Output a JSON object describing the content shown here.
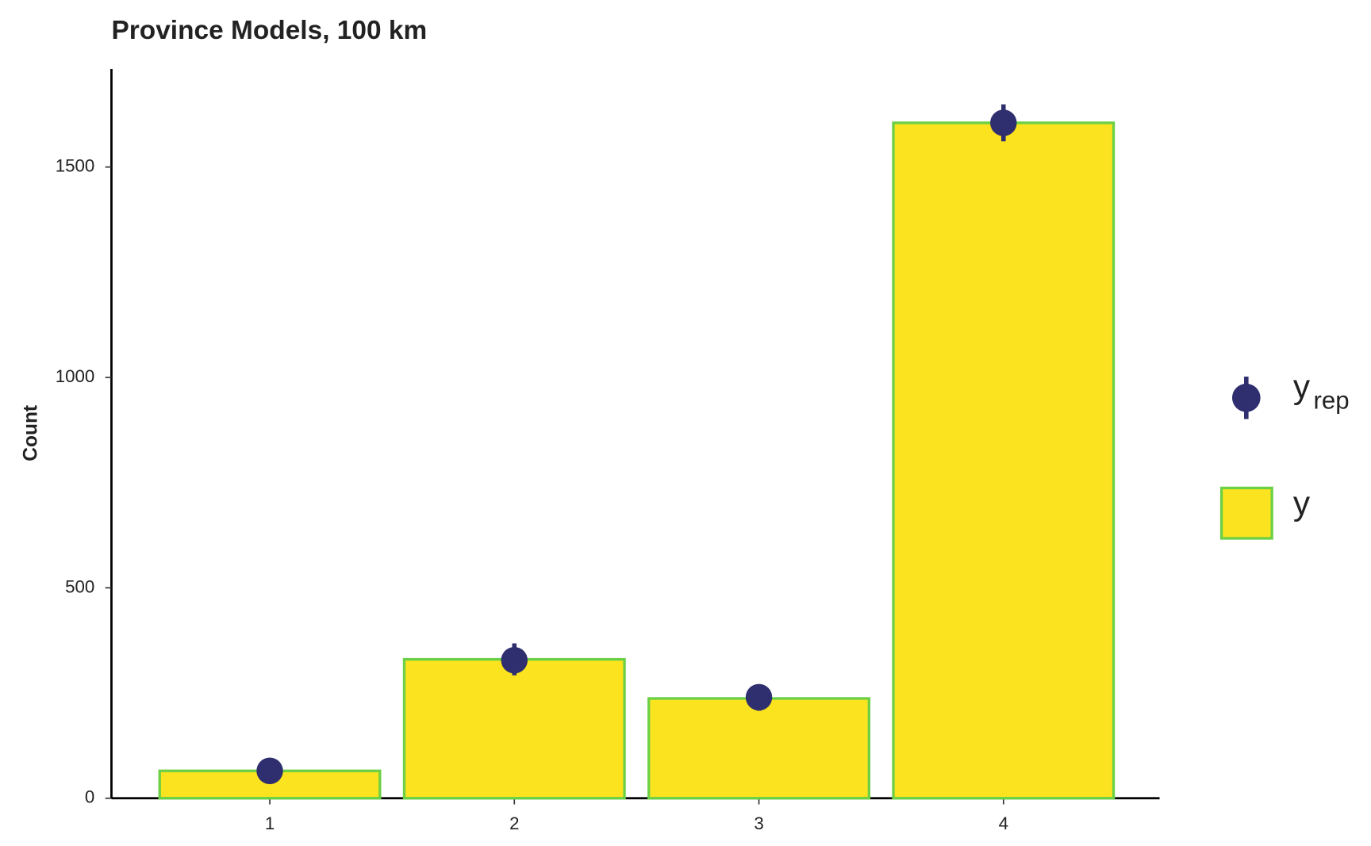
{
  "chart_data": {
    "type": "bar",
    "title": "Province Models, 100 km",
    "y_label": "Count",
    "categories": [
      "1",
      "2",
      "3",
      "4"
    ],
    "ylim": [
      0,
      1733
    ],
    "yticks": [
      0,
      500,
      1000,
      1500
    ],
    "series": [
      {
        "name": "y",
        "color": "#fbe41f",
        "edge_color": "#6cd046",
        "values": [
          65,
          330,
          237,
          1605
        ]
      },
      {
        "name": "y",
        "subscript": "rep",
        "color": "#2f2e6e",
        "values": [
          65,
          328,
          240,
          1605
        ],
        "lower": [
          55,
          292,
          208,
          1561
        ],
        "upper": [
          78,
          368,
          271,
          1649
        ]
      }
    ]
  }
}
